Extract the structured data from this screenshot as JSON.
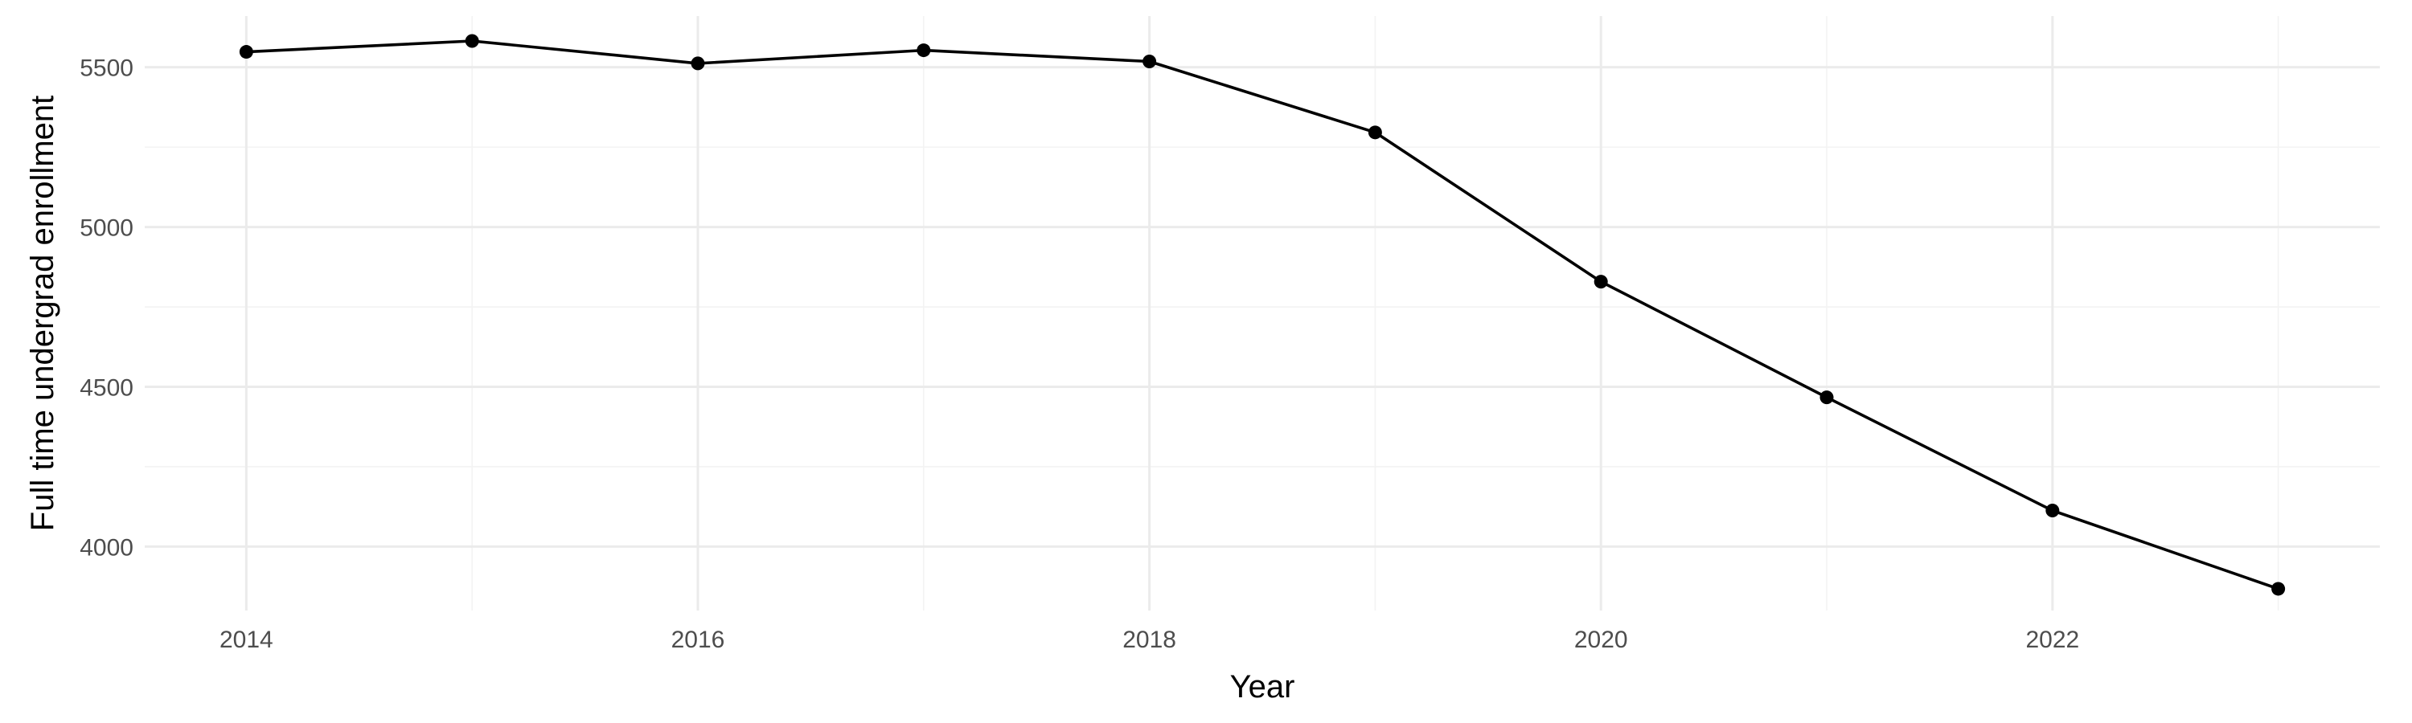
{
  "chart_data": {
    "type": "line",
    "title": "",
    "xlabel": "Year",
    "ylabel": "Full time undergrad enrollment",
    "x": [
      2014,
      2015,
      2016,
      2017,
      2018,
      2019,
      2020,
      2021,
      2022,
      2023
    ],
    "series": [
      {
        "values": [
          5548,
          5582,
          5512,
          5553,
          5518,
          5296,
          4829,
          4467,
          4113,
          3868
        ]
      }
    ],
    "xlim": [
      2013.55,
      2023.45
    ],
    "ylim": [
      3800,
      5660
    ],
    "x_ticks": [
      2014,
      2016,
      2018,
      2020,
      2022
    ],
    "x_minor_ticks": [
      2015,
      2017,
      2019,
      2021,
      2023
    ],
    "y_ticks": [
      4000,
      4500,
      5000,
      5500
    ],
    "y_minor_ticks": [
      4250,
      4750,
      5250
    ],
    "grid": true,
    "legend": "none",
    "colors": {
      "line": "#000000",
      "points": "#000000",
      "grid_major": "#ebebeb",
      "grid_minor": "#f3f3f3",
      "tick_text": "#4d4d4d"
    }
  }
}
